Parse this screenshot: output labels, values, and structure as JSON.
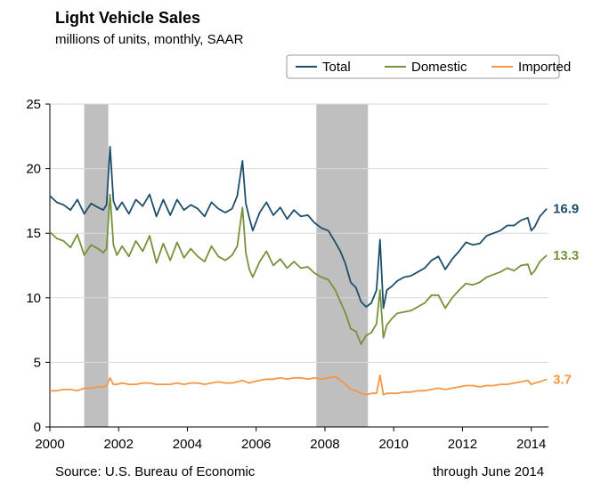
{
  "chart_data": {
    "type": "line",
    "title": "Light Vehicle Sales",
    "subtitle": "millions of units, monthly, SAAR",
    "source": "Source: U.S. Bureau of Economic",
    "note": "through June 2014",
    "xlim": [
      2000,
      2014.5
    ],
    "ylim": [
      0,
      25
    ],
    "x_ticks": [
      "2000",
      "2002",
      "2004",
      "2006",
      "2008",
      "2010",
      "2012",
      "2014"
    ],
    "y_ticks": [
      "0",
      "5",
      "10",
      "15",
      "20",
      "25"
    ],
    "legend_position": "top-right",
    "recessions": [
      [
        2001.0,
        2001.7
      ],
      [
        2007.75,
        2009.25
      ]
    ],
    "series": [
      {
        "name": "Total",
        "color": "#1f4e6b",
        "end_label": "16.9",
        "points": [
          [
            2000.0,
            17.9
          ],
          [
            2000.2,
            17.4
          ],
          [
            2000.4,
            17.2
          ],
          [
            2000.6,
            16.8
          ],
          [
            2000.8,
            17.6
          ],
          [
            2001.0,
            16.5
          ],
          [
            2001.2,
            17.3
          ],
          [
            2001.4,
            17.0
          ],
          [
            2001.55,
            16.8
          ],
          [
            2001.65,
            17.2
          ],
          [
            2001.75,
            21.7
          ],
          [
            2001.85,
            17.5
          ],
          [
            2001.95,
            16.8
          ],
          [
            2002.1,
            17.4
          ],
          [
            2002.3,
            16.5
          ],
          [
            2002.5,
            17.6
          ],
          [
            2002.7,
            17.1
          ],
          [
            2002.9,
            18.0
          ],
          [
            2003.1,
            16.3
          ],
          [
            2003.3,
            17.6
          ],
          [
            2003.5,
            16.4
          ],
          [
            2003.7,
            17.6
          ],
          [
            2003.9,
            16.8
          ],
          [
            2004.1,
            17.2
          ],
          [
            2004.3,
            16.9
          ],
          [
            2004.5,
            16.3
          ],
          [
            2004.7,
            17.4
          ],
          [
            2004.9,
            16.9
          ],
          [
            2005.1,
            16.6
          ],
          [
            2005.3,
            16.9
          ],
          [
            2005.45,
            17.9
          ],
          [
            2005.6,
            20.6
          ],
          [
            2005.7,
            17.3
          ],
          [
            2005.8,
            16.2
          ],
          [
            2005.9,
            15.2
          ],
          [
            2006.1,
            16.6
          ],
          [
            2006.3,
            17.4
          ],
          [
            2006.5,
            16.4
          ],
          [
            2006.7,
            17.0
          ],
          [
            2006.9,
            16.1
          ],
          [
            2007.1,
            16.8
          ],
          [
            2007.3,
            16.3
          ],
          [
            2007.5,
            16.4
          ],
          [
            2007.7,
            15.8
          ],
          [
            2007.9,
            15.4
          ],
          [
            2008.1,
            15.2
          ],
          [
            2008.3,
            14.3
          ],
          [
            2008.45,
            13.6
          ],
          [
            2008.6,
            12.6
          ],
          [
            2008.75,
            11.2
          ],
          [
            2008.9,
            10.8
          ],
          [
            2009.05,
            9.7
          ],
          [
            2009.2,
            9.3
          ],
          [
            2009.35,
            9.6
          ],
          [
            2009.5,
            10.6
          ],
          [
            2009.6,
            14.5
          ],
          [
            2009.7,
            9.2
          ],
          [
            2009.8,
            10.6
          ],
          [
            2009.95,
            10.9
          ],
          [
            2010.1,
            11.3
          ],
          [
            2010.3,
            11.6
          ],
          [
            2010.5,
            11.7
          ],
          [
            2010.7,
            12.0
          ],
          [
            2010.9,
            12.3
          ],
          [
            2011.1,
            12.9
          ],
          [
            2011.3,
            13.2
          ],
          [
            2011.5,
            12.2
          ],
          [
            2011.7,
            13.0
          ],
          [
            2011.9,
            13.6
          ],
          [
            2012.1,
            14.3
          ],
          [
            2012.3,
            14.1
          ],
          [
            2012.5,
            14.2
          ],
          [
            2012.7,
            14.8
          ],
          [
            2012.9,
            15.0
          ],
          [
            2013.1,
            15.2
          ],
          [
            2013.3,
            15.6
          ],
          [
            2013.5,
            15.6
          ],
          [
            2013.7,
            16.0
          ],
          [
            2013.9,
            16.2
          ],
          [
            2014.0,
            15.2
          ],
          [
            2014.1,
            15.5
          ],
          [
            2014.25,
            16.3
          ],
          [
            2014.45,
            16.9
          ]
        ]
      },
      {
        "name": "Domestic",
        "color": "#76923c",
        "end_label": "13.3",
        "points": [
          [
            2000.0,
            15.1
          ],
          [
            2000.2,
            14.6
          ],
          [
            2000.4,
            14.4
          ],
          [
            2000.6,
            13.9
          ],
          [
            2000.8,
            14.9
          ],
          [
            2001.0,
            13.3
          ],
          [
            2001.2,
            14.1
          ],
          [
            2001.4,
            13.8
          ],
          [
            2001.55,
            13.5
          ],
          [
            2001.65,
            13.8
          ],
          [
            2001.75,
            18.0
          ],
          [
            2001.85,
            14.1
          ],
          [
            2001.95,
            13.3
          ],
          [
            2002.1,
            14.0
          ],
          [
            2002.3,
            13.2
          ],
          [
            2002.5,
            14.4
          ],
          [
            2002.7,
            13.6
          ],
          [
            2002.9,
            14.8
          ],
          [
            2003.1,
            12.7
          ],
          [
            2003.3,
            14.2
          ],
          [
            2003.5,
            12.9
          ],
          [
            2003.7,
            14.3
          ],
          [
            2003.9,
            13.1
          ],
          [
            2004.1,
            13.8
          ],
          [
            2004.3,
            13.2
          ],
          [
            2004.5,
            12.8
          ],
          [
            2004.7,
            14.0
          ],
          [
            2004.9,
            13.2
          ],
          [
            2005.1,
            12.9
          ],
          [
            2005.3,
            13.3
          ],
          [
            2005.45,
            14.0
          ],
          [
            2005.6,
            17.0
          ],
          [
            2005.7,
            13.5
          ],
          [
            2005.8,
            12.2
          ],
          [
            2005.9,
            11.6
          ],
          [
            2006.1,
            12.8
          ],
          [
            2006.3,
            13.6
          ],
          [
            2006.5,
            12.5
          ],
          [
            2006.7,
            13.0
          ],
          [
            2006.9,
            12.3
          ],
          [
            2007.1,
            12.8
          ],
          [
            2007.3,
            12.3
          ],
          [
            2007.5,
            12.4
          ],
          [
            2007.7,
            11.9
          ],
          [
            2007.9,
            11.6
          ],
          [
            2008.1,
            11.4
          ],
          [
            2008.3,
            10.6
          ],
          [
            2008.45,
            9.7
          ],
          [
            2008.6,
            8.8
          ],
          [
            2008.75,
            7.6
          ],
          [
            2008.9,
            7.4
          ],
          [
            2009.05,
            6.4
          ],
          [
            2009.2,
            7.1
          ],
          [
            2009.35,
            7.3
          ],
          [
            2009.5,
            8.0
          ],
          [
            2009.6,
            10.6
          ],
          [
            2009.7,
            6.9
          ],
          [
            2009.8,
            7.9
          ],
          [
            2009.95,
            8.4
          ],
          [
            2010.1,
            8.8
          ],
          [
            2010.3,
            8.9
          ],
          [
            2010.5,
            9.0
          ],
          [
            2010.7,
            9.3
          ],
          [
            2010.9,
            9.6
          ],
          [
            2011.1,
            10.2
          ],
          [
            2011.3,
            10.2
          ],
          [
            2011.5,
            9.2
          ],
          [
            2011.7,
            10.0
          ],
          [
            2011.9,
            10.6
          ],
          [
            2012.1,
            11.1
          ],
          [
            2012.3,
            11.0
          ],
          [
            2012.5,
            11.2
          ],
          [
            2012.7,
            11.6
          ],
          [
            2012.9,
            11.8
          ],
          [
            2013.1,
            12.0
          ],
          [
            2013.3,
            12.3
          ],
          [
            2013.5,
            12.1
          ],
          [
            2013.7,
            12.5
          ],
          [
            2013.9,
            12.6
          ],
          [
            2014.0,
            11.8
          ],
          [
            2014.1,
            12.1
          ],
          [
            2014.25,
            12.8
          ],
          [
            2014.45,
            13.3
          ]
        ]
      },
      {
        "name": "Imported",
        "color": "#f79646",
        "end_label": "3.7",
        "points": [
          [
            2000.0,
            2.8
          ],
          [
            2000.2,
            2.8
          ],
          [
            2000.4,
            2.9
          ],
          [
            2000.6,
            2.9
          ],
          [
            2000.8,
            2.8
          ],
          [
            2001.0,
            3.0
          ],
          [
            2001.2,
            3.0
          ],
          [
            2001.4,
            3.1
          ],
          [
            2001.55,
            3.1
          ],
          [
            2001.65,
            3.2
          ],
          [
            2001.75,
            3.8
          ],
          [
            2001.85,
            3.3
          ],
          [
            2001.95,
            3.3
          ],
          [
            2002.1,
            3.4
          ],
          [
            2002.3,
            3.3
          ],
          [
            2002.5,
            3.3
          ],
          [
            2002.7,
            3.4
          ],
          [
            2002.9,
            3.4
          ],
          [
            2003.1,
            3.3
          ],
          [
            2003.3,
            3.3
          ],
          [
            2003.5,
            3.3
          ],
          [
            2003.7,
            3.4
          ],
          [
            2003.9,
            3.3
          ],
          [
            2004.1,
            3.4
          ],
          [
            2004.3,
            3.4
          ],
          [
            2004.5,
            3.3
          ],
          [
            2004.7,
            3.4
          ],
          [
            2004.9,
            3.5
          ],
          [
            2005.1,
            3.4
          ],
          [
            2005.3,
            3.4
          ],
          [
            2005.45,
            3.5
          ],
          [
            2005.6,
            3.6
          ],
          [
            2005.7,
            3.5
          ],
          [
            2005.8,
            3.4
          ],
          [
            2005.9,
            3.5
          ],
          [
            2006.1,
            3.6
          ],
          [
            2006.3,
            3.7
          ],
          [
            2006.5,
            3.7
          ],
          [
            2006.7,
            3.8
          ],
          [
            2006.9,
            3.7
          ],
          [
            2007.1,
            3.8
          ],
          [
            2007.3,
            3.8
          ],
          [
            2007.5,
            3.7
          ],
          [
            2007.7,
            3.8
          ],
          [
            2007.9,
            3.7
          ],
          [
            2008.1,
            3.8
          ],
          [
            2008.3,
            3.9
          ],
          [
            2008.45,
            3.6
          ],
          [
            2008.6,
            3.3
          ],
          [
            2008.75,
            2.9
          ],
          [
            2008.9,
            2.8
          ],
          [
            2009.05,
            2.6
          ],
          [
            2009.2,
            2.5
          ],
          [
            2009.35,
            2.6
          ],
          [
            2009.5,
            2.6
          ],
          [
            2009.6,
            4.0
          ],
          [
            2009.7,
            2.5
          ],
          [
            2009.8,
            2.6
          ],
          [
            2009.95,
            2.6
          ],
          [
            2010.1,
            2.6
          ],
          [
            2010.3,
            2.7
          ],
          [
            2010.5,
            2.7
          ],
          [
            2010.7,
            2.8
          ],
          [
            2010.9,
            2.8
          ],
          [
            2011.1,
            2.9
          ],
          [
            2011.3,
            3.0
          ],
          [
            2011.5,
            2.9
          ],
          [
            2011.7,
            3.0
          ],
          [
            2011.9,
            3.1
          ],
          [
            2012.1,
            3.2
          ],
          [
            2012.3,
            3.2
          ],
          [
            2012.5,
            3.1
          ],
          [
            2012.7,
            3.2
          ],
          [
            2012.9,
            3.2
          ],
          [
            2013.1,
            3.3
          ],
          [
            2013.3,
            3.3
          ],
          [
            2013.5,
            3.4
          ],
          [
            2013.7,
            3.5
          ],
          [
            2013.9,
            3.6
          ],
          [
            2014.0,
            3.3
          ],
          [
            2014.1,
            3.4
          ],
          [
            2014.25,
            3.5
          ],
          [
            2014.45,
            3.7
          ]
        ]
      }
    ]
  }
}
